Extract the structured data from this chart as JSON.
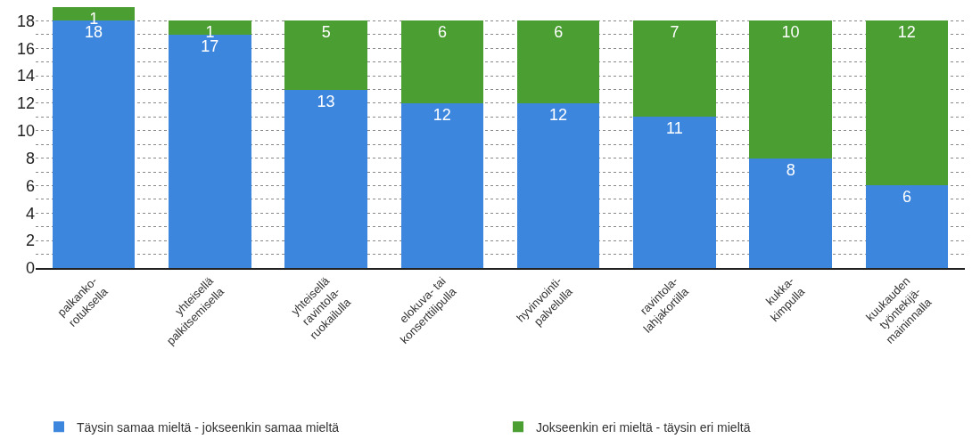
{
  "chart_data": {
    "type": "bar",
    "stacked": true,
    "categories": [
      "palkanko-\nrotuksella",
      "yhteisellä\npalkitsemisella",
      "yhteisellä\nravintola-\nruokailulla",
      "elokuva- tai\nkonserttilipulla",
      "hyvinvointi-\npalvelulla",
      "ravintola-\nlahjakortilla",
      "kukka-\nkimpulla",
      "kuukauden\ntyöntekijä-\nmaininnalla"
    ],
    "series": [
      {
        "name": "Täysin samaa mieltä - jokseenkin samaa mieltä",
        "color": "#3d86de",
        "values": [
          18,
          17,
          13,
          12,
          12,
          11,
          8,
          6
        ]
      },
      {
        "name": "Jokseenkin eri mieltä - täysin eri mieltä",
        "color": "#4a9e32",
        "values": [
          1,
          1,
          5,
          6,
          6,
          7,
          10,
          12
        ]
      }
    ],
    "ylim": [
      0,
      19
    ],
    "yticks": [
      0,
      {
        "value": 1,
        "label": null
      },
      2,
      {
        "value": 3,
        "label": null
      },
      4,
      {
        "value": 5,
        "label": null
      },
      6,
      {
        "value": 7,
        "label": null
      },
      8,
      {
        "value": 9,
        "label": null
      },
      10,
      {
        "value": 11,
        "label": null
      },
      12,
      {
        "value": 13,
        "label": null
      },
      14,
      {
        "value": 15,
        "label": null
      },
      16,
      {
        "value": 17,
        "label": null
      },
      18
    ],
    "grid": "y",
    "legend": "bottom",
    "data_labels": true
  }
}
